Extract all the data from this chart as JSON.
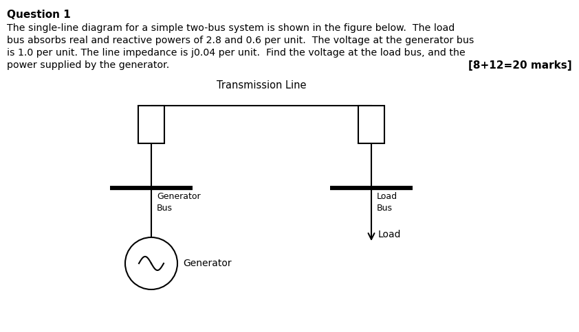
{
  "title_text": "Question 1",
  "body_line1": "The single-line diagram for a simple two-bus system is shown in the figure below.  The load",
  "body_line2": "bus absorbs real and reactive powers of 2.8 and 0.6 per unit.  The voltage at the generator bus",
  "body_line3": "is 1.0 per unit. The line impedance is j0.04 per unit.  Find the voltage at the load bus, and the",
  "body_line4": "power supplied by the generator.",
  "marks_text": "[8+12=20 marks]",
  "transmission_line_label": "Transmission Line",
  "generator_bus_label": "Generator\nBus",
  "load_bus_label": "Load\nBus",
  "generator_label": "Generator",
  "load_label": "Load",
  "bg_color": "#ffffff",
  "line_color": "#000000"
}
